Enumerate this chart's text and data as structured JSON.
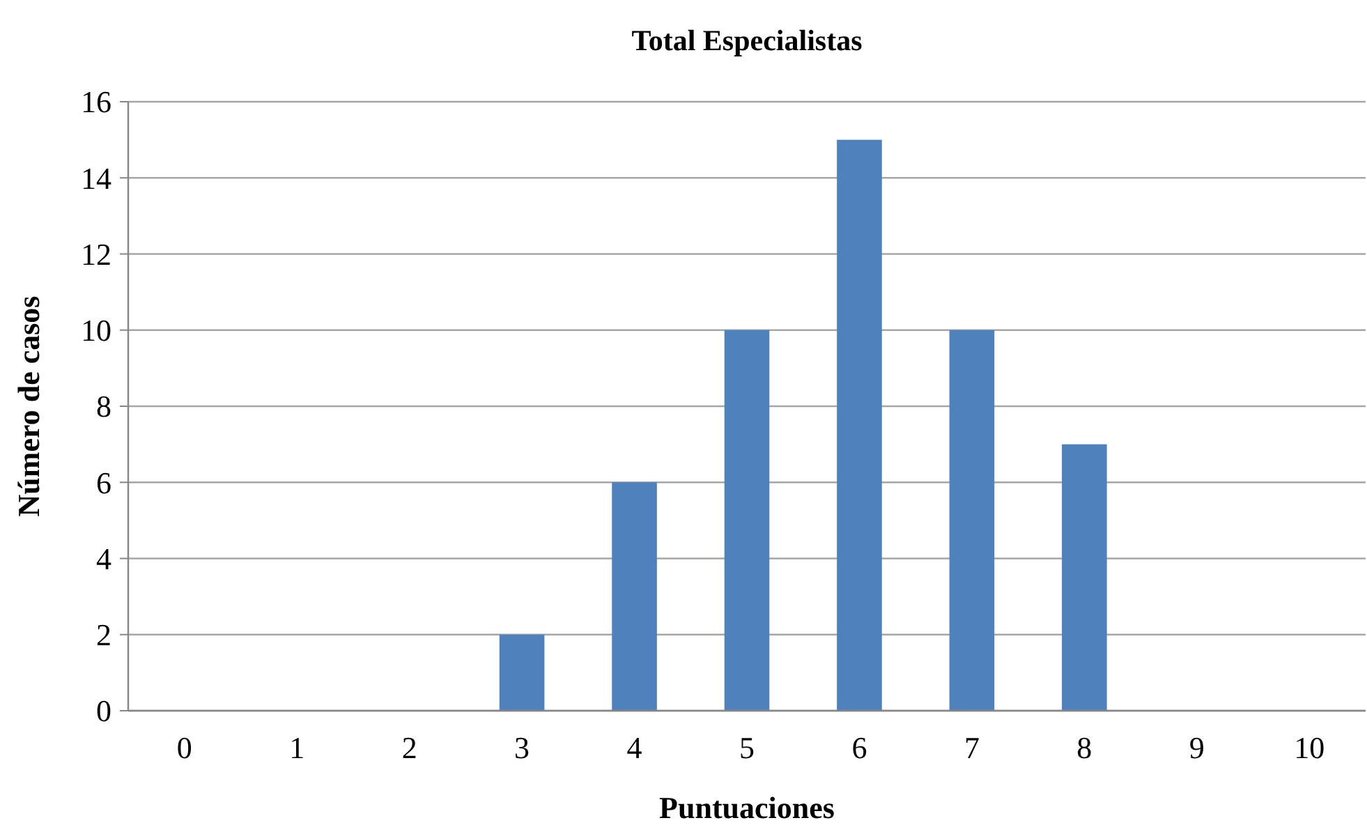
{
  "chart_data": {
    "type": "bar",
    "title": "Total Especialistas",
    "xlabel": "Puntuaciones",
    "ylabel": "Número de casos",
    "categories": [
      "0",
      "1",
      "2",
      "3",
      "4",
      "5",
      "6",
      "7",
      "8",
      "9",
      "10"
    ],
    "values": [
      0,
      0,
      0,
      2,
      6,
      10,
      15,
      10,
      7,
      0,
      0
    ],
    "color": "#4f81bd",
    "ylim": [
      0,
      16
    ],
    "yticks": [
      0,
      2,
      4,
      6,
      8,
      10,
      12,
      14,
      16
    ],
    "grid": "y"
  }
}
